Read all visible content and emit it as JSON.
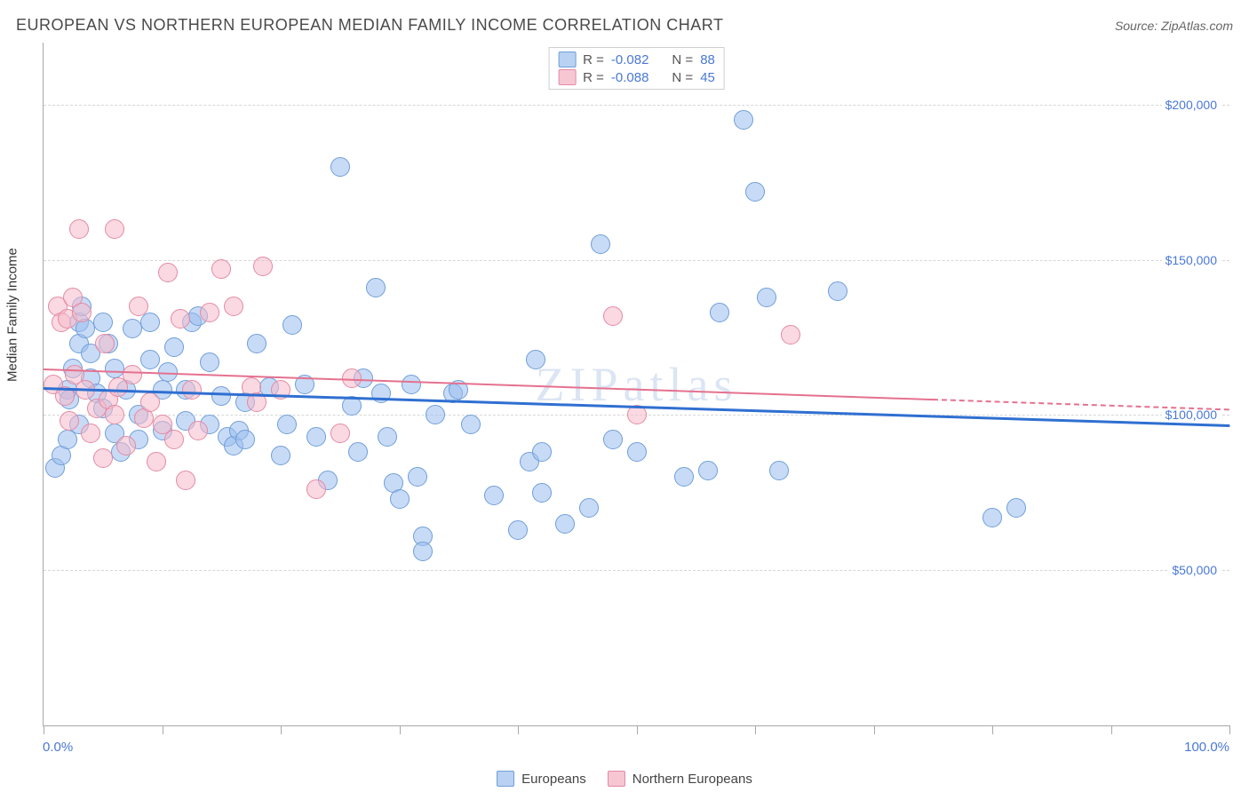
{
  "title": "EUROPEAN VS NORTHERN EUROPEAN MEDIAN FAMILY INCOME CORRELATION CHART",
  "source": "Source: ZipAtlas.com",
  "watermark": "ZIPatlas",
  "yaxis_title": "Median Family Income",
  "chart": {
    "type": "scatter",
    "background_color": "#ffffff",
    "grid_color": "#d6d6d6",
    "axis_color": "#a8a8a8",
    "label_color": "#4a78d6",
    "xlim": [
      0,
      100
    ],
    "ylim": [
      0,
      220000
    ],
    "x_start_label": "0.0%",
    "x_end_label": "100.0%",
    "xtick_positions": [
      0,
      10,
      20,
      30,
      40,
      50,
      60,
      70,
      80,
      90,
      100
    ],
    "yticks": [
      {
        "v": 50000,
        "label": "$50,000"
      },
      {
        "v": 100000,
        "label": "$100,000"
      },
      {
        "v": 150000,
        "label": "$150,000"
      },
      {
        "v": 200000,
        "label": "$200,000"
      }
    ],
    "marker_radius": 11,
    "marker_border_width": 1.5,
    "series": [
      {
        "name": "Europeans",
        "fill": "rgba(154,190,238,0.55)",
        "stroke": "#6f9ed9",
        "swatch_fill": "#b9d1f2",
        "swatch_stroke": "#6f9ed9",
        "R": "-0.082",
        "N": "88",
        "trend": {
          "y_at_x0": 109000,
          "y_at_x100": 97000,
          "color": "#2f6fd1",
          "width": 3,
          "x_solid_to": 100
        },
        "points": [
          [
            1,
            83000
          ],
          [
            1.5,
            87000
          ],
          [
            2,
            92000
          ],
          [
            2,
            108000
          ],
          [
            2.2,
            105000
          ],
          [
            2.5,
            115000
          ],
          [
            3,
            97000
          ],
          [
            3,
            123000
          ],
          [
            3,
            130000
          ],
          [
            3.2,
            135000
          ],
          [
            3.5,
            128000
          ],
          [
            4,
            120000
          ],
          [
            4,
            112000
          ],
          [
            4.5,
            107000
          ],
          [
            5,
            102000
          ],
          [
            5,
            130000
          ],
          [
            5.5,
            123000
          ],
          [
            6,
            115000
          ],
          [
            6,
            94000
          ],
          [
            6.5,
            88000
          ],
          [
            7,
            108000
          ],
          [
            7.5,
            128000
          ],
          [
            8,
            100000
          ],
          [
            8,
            92000
          ],
          [
            9,
            118000
          ],
          [
            9,
            130000
          ],
          [
            10,
            108000
          ],
          [
            10,
            95000
          ],
          [
            10.5,
            114000
          ],
          [
            11,
            122000
          ],
          [
            12,
            98000
          ],
          [
            12,
            108000
          ],
          [
            12.5,
            130000
          ],
          [
            13,
            132000
          ],
          [
            14,
            117000
          ],
          [
            14,
            97000
          ],
          [
            15,
            106000
          ],
          [
            15.5,
            93000
          ],
          [
            16,
            90000
          ],
          [
            16.5,
            95000
          ],
          [
            17,
            92000
          ],
          [
            17,
            104000
          ],
          [
            18,
            123000
          ],
          [
            19,
            109000
          ],
          [
            20,
            87000
          ],
          [
            20.5,
            97000
          ],
          [
            21,
            129000
          ],
          [
            22,
            110000
          ],
          [
            23,
            93000
          ],
          [
            24,
            79000
          ],
          [
            25,
            180000
          ],
          [
            26,
            103000
          ],
          [
            26.5,
            88000
          ],
          [
            27,
            112000
          ],
          [
            28,
            141000
          ],
          [
            28.5,
            107000
          ],
          [
            29,
            93000
          ],
          [
            29.5,
            78000
          ],
          [
            30,
            73000
          ],
          [
            31,
            110000
          ],
          [
            31.5,
            80000
          ],
          [
            32,
            61000
          ],
          [
            32,
            56000
          ],
          [
            33,
            100000
          ],
          [
            34.5,
            107000
          ],
          [
            35,
            108000
          ],
          [
            36,
            97000
          ],
          [
            38,
            74000
          ],
          [
            40,
            63000
          ],
          [
            41,
            85000
          ],
          [
            41.5,
            118000
          ],
          [
            42,
            75000
          ],
          [
            42,
            88000
          ],
          [
            44,
            65000
          ],
          [
            46,
            70000
          ],
          [
            47,
            155000
          ],
          [
            48,
            92000
          ],
          [
            50,
            88000
          ],
          [
            54,
            80000
          ],
          [
            56,
            82000
          ],
          [
            57,
            133000
          ],
          [
            59,
            195000
          ],
          [
            60,
            172000
          ],
          [
            61,
            138000
          ],
          [
            62,
            82000
          ],
          [
            67,
            140000
          ],
          [
            80,
            67000
          ],
          [
            82,
            70000
          ]
        ]
      },
      {
        "name": "Northern Europeans",
        "fill": "rgba(246,185,203,0.55)",
        "stroke": "#e48aa3",
        "swatch_fill": "#f6c6d3",
        "swatch_stroke": "#e48aa3",
        "R": "-0.088",
        "N": "45",
        "trend": {
          "y_at_x0": 115000,
          "y_at_x100": 102000,
          "color": "#e5718f",
          "width": 2.5,
          "x_solid_to": 75
        },
        "points": [
          [
            0.8,
            110000
          ],
          [
            1.2,
            135000
          ],
          [
            1.5,
            130000
          ],
          [
            1.8,
            106000
          ],
          [
            2,
            131000
          ],
          [
            2.2,
            98000
          ],
          [
            2.5,
            138000
          ],
          [
            2.6,
            113000
          ],
          [
            3,
            160000
          ],
          [
            3.2,
            133000
          ],
          [
            3.5,
            108000
          ],
          [
            4,
            94000
          ],
          [
            4.5,
            102000
          ],
          [
            5,
            86000
          ],
          [
            5.2,
            123000
          ],
          [
            5.5,
            105000
          ],
          [
            6,
            100000
          ],
          [
            6,
            160000
          ],
          [
            6.3,
            109000
          ],
          [
            7,
            90000
          ],
          [
            7.5,
            113000
          ],
          [
            8,
            135000
          ],
          [
            8.5,
            99000
          ],
          [
            9,
            104000
          ],
          [
            9.5,
            85000
          ],
          [
            10,
            97000
          ],
          [
            10.5,
            146000
          ],
          [
            11,
            92000
          ],
          [
            11.5,
            131000
          ],
          [
            12,
            79000
          ],
          [
            12.5,
            108000
          ],
          [
            13,
            95000
          ],
          [
            14,
            133000
          ],
          [
            15,
            147000
          ],
          [
            16,
            135000
          ],
          [
            17.5,
            109000
          ],
          [
            18,
            104000
          ],
          [
            18.5,
            148000
          ],
          [
            20,
            108000
          ],
          [
            23,
            76000
          ],
          [
            25,
            94000
          ],
          [
            26,
            112000
          ],
          [
            48,
            132000
          ],
          [
            50,
            100000
          ],
          [
            63,
            126000
          ]
        ]
      }
    ]
  },
  "legend": {
    "R_label": "R =",
    "N_label": "N ="
  },
  "xlegend_items": [
    "Europeans",
    "Northern Europeans"
  ]
}
